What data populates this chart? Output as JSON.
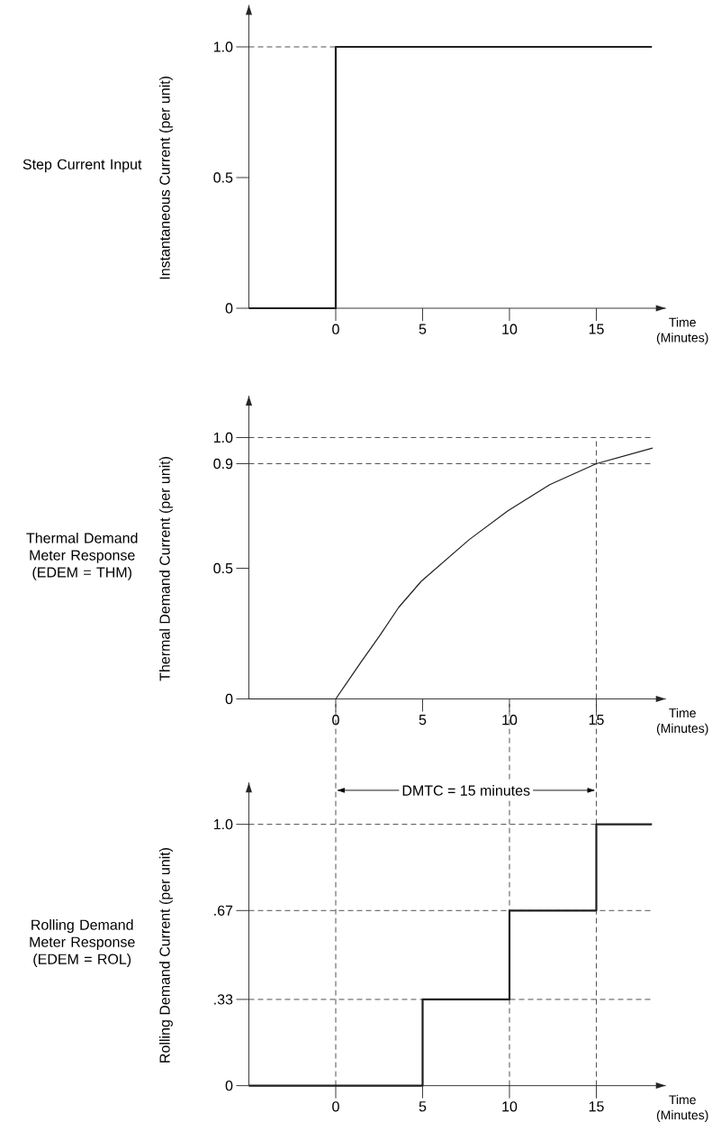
{
  "chart_data": [
    {
      "type": "step",
      "title": "Step Current Input",
      "ylabel": "Instantaneous Current (per unit)",
      "xlabel": "Time (Minutes)",
      "color": "#231f20",
      "x": [
        -5,
        0,
        18.2
      ],
      "values": [
        0,
        1,
        1
      ],
      "xlim": [
        -5,
        19
      ],
      "ylim": [
        0,
        1.16
      ],
      "xticks": [
        0,
        5,
        10,
        15
      ],
      "yticks": [
        0,
        {
          "value": 0.5,
          "label": "0.5"
        },
        {
          "value": 1,
          "label": "1.0"
        }
      ],
      "ref_lines": [
        {
          "axis": "y",
          "value": 1,
          "line_style": "dashed"
        }
      ]
    },
    {
      "type": "line",
      "title": "Thermal Demand Meter Response (EDEM = THM)",
      "ylabel": "Thermal Demand Current (per unit)",
      "xlabel": "Time (Minutes)",
      "color": "#231f20",
      "x": [
        -5,
        0,
        1.4,
        2.51,
        3.62,
        4.92,
        7.69,
        9.91,
        12.32,
        15,
        18.24
      ],
      "values": [
        0,
        0,
        0.136,
        0.24,
        0.35,
        0.45,
        0.61,
        0.72,
        0.82,
        0.9,
        0.96
      ],
      "xlim": [
        -5,
        19
      ],
      "ylim": [
        0,
        1.16
      ],
      "xticks": [
        0,
        5,
        10,
        15
      ],
      "yticks": [
        0,
        {
          "value": 0.5,
          "label": "0.5"
        },
        {
          "value": 0.9,
          "label": "0.9"
        },
        {
          "value": 1,
          "label": "1.0"
        }
      ],
      "ref_lines": [
        {
          "axis": "y",
          "value": 1,
          "line_style": "dashed"
        },
        {
          "axis": "y",
          "value": 0.9,
          "line_style": "dashed"
        },
        {
          "axis": "x",
          "value": 15,
          "line_style": "dashed"
        }
      ]
    },
    {
      "type": "step",
      "title": "Rolling Demand Meter Response (EDEM = ROL)",
      "ylabel": "Rolling Demand Current (per unit)",
      "xlabel": "Time (Minutes)",
      "color": "#231f20",
      "x": [
        -5,
        5,
        10,
        15,
        18.2
      ],
      "values": [
        0,
        0.33,
        0.67,
        1,
        1
      ],
      "xlim": [
        -5,
        19
      ],
      "ylim": [
        0,
        1.16
      ],
      "xticks": [
        0,
        5,
        10,
        15
      ],
      "yticks": [
        0,
        {
          "value": 0.33,
          "label": ".33"
        },
        {
          "value": 0.67,
          "label": ".67"
        },
        {
          "value": 1,
          "label": "1.0"
        }
      ],
      "ref_lines": [
        {
          "axis": "y",
          "value": 0.33,
          "line_style": "dashed"
        },
        {
          "axis": "y",
          "value": 0.67,
          "line_style": "dashed"
        },
        {
          "axis": "y",
          "value": 1,
          "line_style": "dashed"
        },
        {
          "axis": "x",
          "value": 0,
          "line_style": "dashed"
        },
        {
          "axis": "x",
          "value": 10,
          "line_style": "dashed"
        },
        {
          "axis": "x",
          "value": 15,
          "line_style": "dashed"
        }
      ],
      "annotations": [
        "DMTC = 15 minutes"
      ]
    }
  ]
}
